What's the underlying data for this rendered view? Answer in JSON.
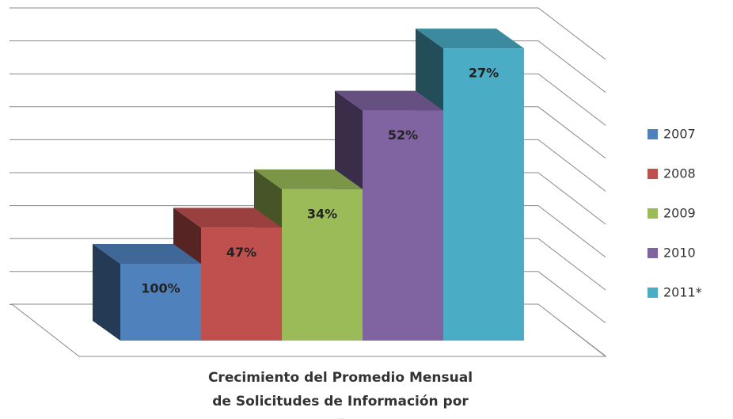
{
  "chart_data": {
    "type": "bar3d",
    "title": "Crecimiento del Promedio Mensual de Solicitudes de Información por año",
    "categories": [
      "2007",
      "2008",
      "2009",
      "2010",
      "2011*"
    ],
    "values": [
      100,
      47,
      34,
      52,
      27
    ],
    "value_labels": [
      "100%",
      "47%",
      "34%",
      "52%",
      "27%"
    ],
    "colors": [
      "#4f81bd",
      "#c0504d",
      "#9bbb59",
      "#8064a2",
      "#4bacc6"
    ],
    "legend": "right"
  }
}
